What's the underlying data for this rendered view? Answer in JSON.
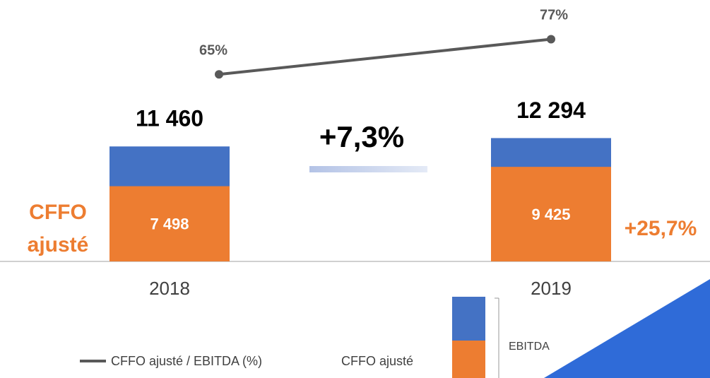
{
  "chart_data": {
    "type": "bar_line",
    "categories": [
      "2018",
      "2019"
    ],
    "series": [
      {
        "name": "EBITDA",
        "color": "#4472c4",
        "values": [
          11460,
          12294
        ],
        "value_labels": [
          "11 460",
          "12 294"
        ]
      },
      {
        "name": "CFFO ajusté",
        "color": "#ed7d31",
        "values": [
          7498,
          9425
        ],
        "value_labels": [
          "7 498",
          "9 425"
        ]
      },
      {
        "name": "CFFO ajusté / EBITDA (%)",
        "color": "#595959",
        "type": "line",
        "values": [
          65,
          77
        ],
        "value_labels": [
          "65%",
          "77%"
        ]
      }
    ],
    "annotations": [
      "+7,3%",
      "+25,7%"
    ],
    "side_label": [
      "CFFO",
      "ajusté"
    ]
  }
}
